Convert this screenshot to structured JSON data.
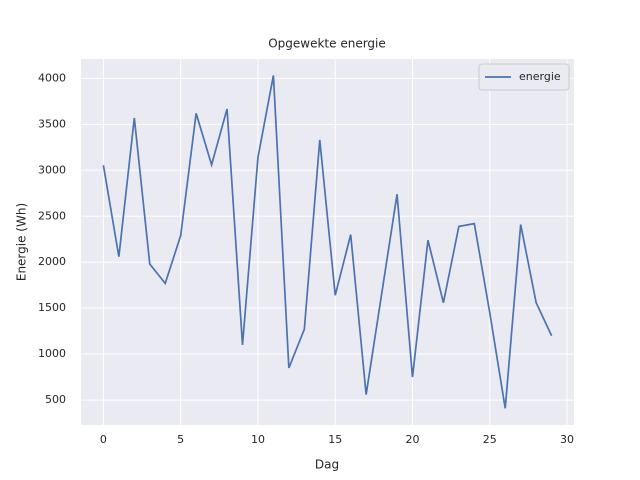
{
  "chart_data": {
    "type": "line",
    "title": "Opgewekte energie",
    "x_label": "Dag",
    "y_label": "Energie (Wh)",
    "x": [
      0,
      1,
      2,
      3,
      4,
      5,
      6,
      7,
      8,
      9,
      10,
      11,
      12,
      13,
      14,
      15,
      16,
      17,
      18,
      19,
      20,
      21,
      22,
      23,
      24,
      25,
      26,
      27,
      28,
      29
    ],
    "series": [
      {
        "name": "energie",
        "color": "#4c72b0",
        "values": [
          3055,
          2060,
          3570,
          1980,
          1770,
          2290,
          3620,
          3060,
          3667,
          1100,
          3140,
          4032,
          850,
          1270,
          3330,
          1640,
          2300,
          560,
          1650,
          2740,
          750,
          2240,
          1560,
          2390,
          2420,
          1450,
          410,
          2410,
          1560,
          1200
        ]
      }
    ],
    "xlim": [
      -1.45,
      30.45
    ],
    "xticks": [
      0,
      5,
      10,
      15,
      20,
      25,
      30
    ],
    "ylim": [
      229,
      4211
    ],
    "yticks": [
      500,
      1000,
      1500,
      2000,
      2500,
      3000,
      3500,
      4000
    ],
    "grid": true,
    "legend": "upper right"
  }
}
